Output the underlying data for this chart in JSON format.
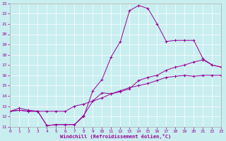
{
  "bg_color": "#c8eef0",
  "line_color": "#990099",
  "grid_color": "#ffffff",
  "xlabel": "Windchill (Refroidissement éolien,°C)",
  "xlim": [
    0,
    23
  ],
  "ylim": [
    11,
    23
  ],
  "xticks": [
    0,
    1,
    2,
    3,
    4,
    5,
    6,
    7,
    8,
    9,
    10,
    11,
    12,
    13,
    14,
    15,
    16,
    17,
    18,
    19,
    20,
    21,
    22,
    23
  ],
  "yticks": [
    11,
    12,
    13,
    14,
    15,
    16,
    17,
    18,
    19,
    20,
    21,
    22,
    23
  ],
  "lineA_x": [
    0,
    1,
    2,
    3,
    4,
    5,
    6,
    7,
    8,
    9,
    10,
    11,
    12,
    13,
    14,
    15,
    16,
    17,
    18,
    19,
    20,
    21,
    22,
    23
  ],
  "lineA_y": [
    12.5,
    12.8,
    12.6,
    12.5,
    12.5,
    12.5,
    12.5,
    13.0,
    13.2,
    13.5,
    13.8,
    14.2,
    14.5,
    14.8,
    15.0,
    15.2,
    15.5,
    15.8,
    15.9,
    16.0,
    15.9,
    16.0,
    16.0,
    16.0
  ],
  "lineB_x": [
    0,
    1,
    2,
    3,
    4,
    5,
    6,
    7,
    8,
    9,
    10,
    11,
    12,
    13,
    14,
    15,
    16,
    17,
    18,
    19,
    20,
    21,
    22,
    23
  ],
  "lineB_y": [
    12.5,
    12.6,
    12.5,
    12.5,
    11.1,
    11.2,
    11.2,
    11.2,
    12.1,
    13.5,
    14.3,
    14.2,
    14.4,
    14.7,
    15.5,
    15.8,
    16.0,
    16.5,
    16.8,
    17.0,
    17.3,
    17.5,
    17.0,
    16.8
  ],
  "lineC_x": [
    0,
    1,
    2,
    3,
    4,
    5,
    6,
    7,
    8,
    9,
    10,
    11,
    12,
    13,
    14,
    15,
    16,
    17,
    18,
    19,
    20,
    21,
    22,
    23
  ],
  "lineC_y": [
    12.5,
    12.6,
    12.5,
    12.5,
    11.1,
    11.2,
    11.2,
    11.2,
    12.0,
    14.5,
    15.6,
    17.8,
    19.3,
    22.3,
    22.8,
    22.5,
    21.0,
    19.3,
    19.4,
    19.4,
    19.4,
    17.6,
    17.0,
    16.8
  ]
}
